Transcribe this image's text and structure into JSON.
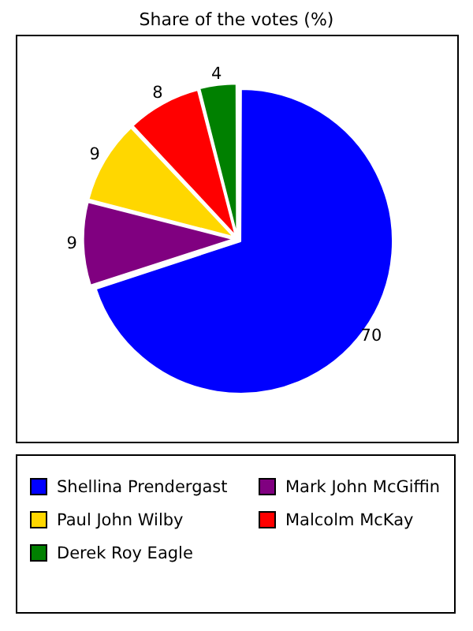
{
  "chart_data": {
    "type": "pie",
    "title": "Share of the votes (%)",
    "categories": [
      "Shellina Prendergast",
      "Mark John McGiffin",
      "Paul John Wilby",
      "Malcolm McKay",
      "Derek Roy Eagle"
    ],
    "values": [
      70,
      9,
      9,
      8,
      4
    ],
    "colors": [
      "#0000ff",
      "#800080",
      "#ffd700",
      "#ff0000",
      "#008000"
    ],
    "data_labels": true,
    "legend": "bottom"
  }
}
